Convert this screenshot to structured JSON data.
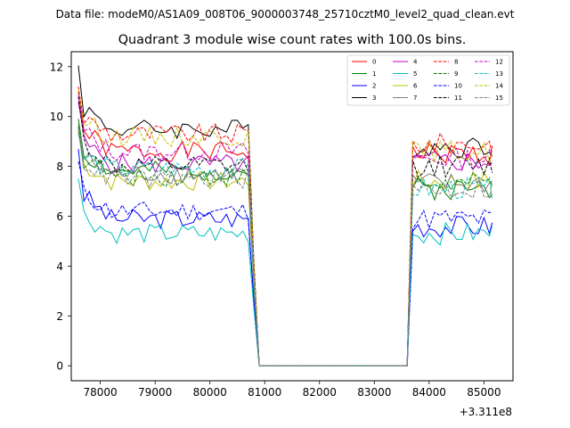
{
  "chart_data": {
    "type": "line",
    "suptitle": "Data file: modeM0/AS1A09_008T06_9000003748_25710cztM0_level2_quad_clean.evt",
    "title": "Quadrant 3 module wise count rates with 100.0s bins.",
    "xlabel": "",
    "ylabel": "",
    "x_offset_label": "+3.311e8",
    "xlim": [
      77470,
      85530
    ],
    "ylim": [
      -0.6,
      12.6
    ],
    "x_ticks": [
      78000,
      79000,
      80000,
      81000,
      82000,
      83000,
      84000,
      85000
    ],
    "x_tick_labels": [
      "78000",
      "79000",
      "80000",
      "81000",
      "82000",
      "83000",
      "84000",
      "85000"
    ],
    "y_ticks": [
      0,
      2,
      4,
      6,
      8,
      10,
      12
    ],
    "y_tick_labels": [
      "0",
      "2",
      "4",
      "6",
      "8",
      "10",
      "12"
    ],
    "x_segments": [
      {
        "start": 77600,
        "end": 80700,
        "step": 100
      },
      {
        "start": 80800,
        "end": 80900,
        "step": 100
      },
      {
        "start": 81000,
        "end": 83600,
        "step": 100
      },
      {
        "start": 83700,
        "end": 85100,
        "step": 100
      },
      {
        "start": 85150,
        "end": 85150,
        "step": 100
      }
    ],
    "legend_position": "top-right",
    "series": [
      {
        "name": "0",
        "color": "#ff0000",
        "dash": "solid",
        "level_a": 8.6,
        "level_b": 8.5,
        "start": 11.0,
        "seed": 1
      },
      {
        "name": "1",
        "color": "#008000",
        "dash": "solid",
        "level_a": 7.8,
        "level_b": 7.1,
        "start": 9.9,
        "seed": 2
      },
      {
        "name": "2",
        "color": "#0000ff",
        "dash": "solid",
        "level_a": 5.9,
        "level_b": 5.6,
        "start": 8.7,
        "seed": 3
      },
      {
        "name": "3",
        "color": "#000000",
        "dash": "solid",
        "level_a": 9.5,
        "level_b": 8.8,
        "start": 12.05,
        "seed": 4
      },
      {
        "name": "4",
        "color": "#bf00bf",
        "dash": "solid",
        "level_a": 8.1,
        "level_b": 8.2,
        "start": 10.6,
        "seed": 5
      },
      {
        "name": "5",
        "color": "#00bfbf",
        "dash": "solid",
        "level_a": 5.3,
        "level_b": 5.3,
        "start": 7.5,
        "seed": 6
      },
      {
        "name": "6",
        "color": "#bfbf00",
        "dash": "solid",
        "level_a": 7.4,
        "level_b": 7.4,
        "start": 9.4,
        "seed": 7
      },
      {
        "name": "7",
        "color": "#808080",
        "dash": "solid",
        "level_a": 7.7,
        "level_b": 7.3,
        "start": 9.7,
        "seed": 8
      },
      {
        "name": "8",
        "color": "#ff0000",
        "dash": "dashed",
        "level_a": 9.3,
        "level_b": 8.9,
        "start": 11.2,
        "seed": 9
      },
      {
        "name": "9",
        "color": "#008000",
        "dash": "dashed",
        "level_a": 7.6,
        "level_b": 7.3,
        "start": 9.6,
        "seed": 10
      },
      {
        "name": "10",
        "color": "#0000ff",
        "dash": "dashed",
        "level_a": 6.2,
        "level_b": 5.9,
        "start": 8.2,
        "seed": 11
      },
      {
        "name": "11",
        "color": "#000000",
        "dash": "dashed",
        "level_a": 8.0,
        "level_b": 8.0,
        "start": 10.8,
        "seed": 12
      },
      {
        "name": "12",
        "color": "#bf00bf",
        "dash": "dashed",
        "level_a": 8.6,
        "level_b": 8.3,
        "start": 10.9,
        "seed": 13
      },
      {
        "name": "13",
        "color": "#00bfbf",
        "dash": "dashed",
        "level_a": 7.9,
        "level_b": 7.1,
        "start": 9.3,
        "seed": 14
      },
      {
        "name": "14",
        "color": "#bfbf00",
        "dash": "dashed",
        "level_a": 9.2,
        "level_b": 8.6,
        "start": 11.1,
        "seed": 15
      },
      {
        "name": "15",
        "color": "#808080",
        "dash": "dashed",
        "level_a": 7.5,
        "level_b": 7.1,
        "start": 9.5,
        "seed": 16
      }
    ]
  }
}
